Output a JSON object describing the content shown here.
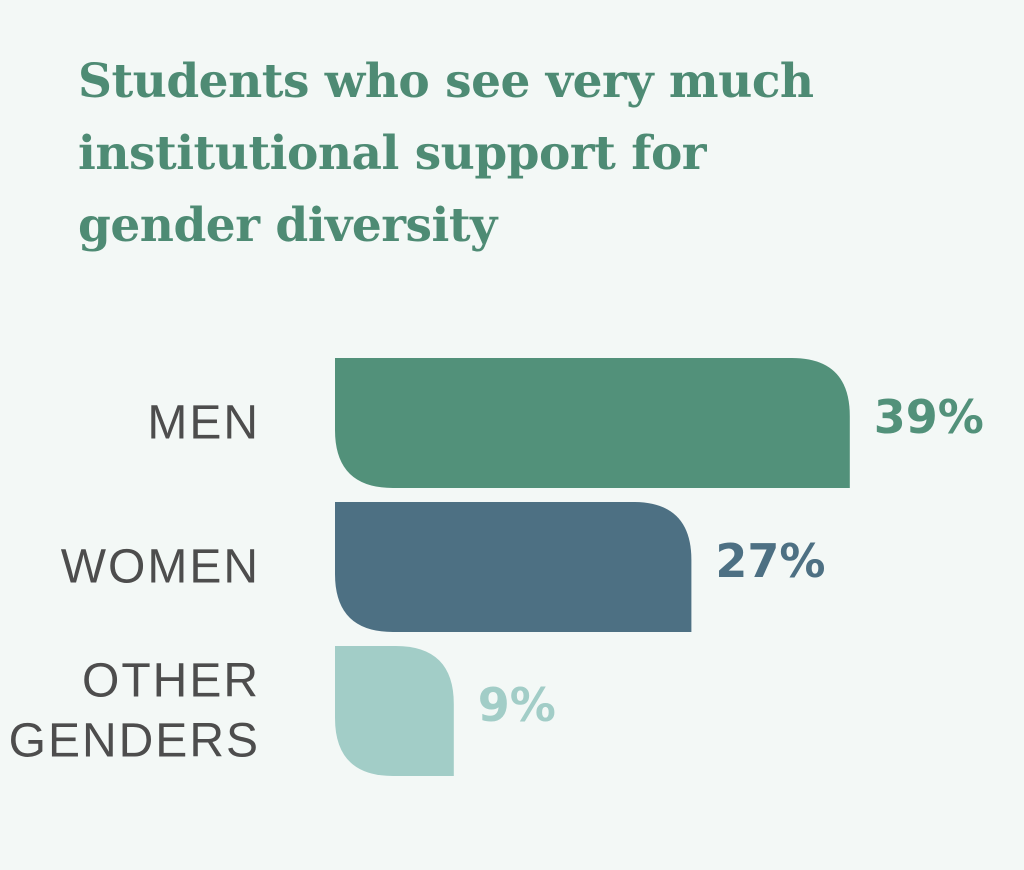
{
  "chart_data": {
    "type": "bar",
    "orientation": "horizontal",
    "title": "Students who see very much institutional support for gender diversity",
    "categories": [
      {
        "lines": [
          "MEN"
        ],
        "key": "men"
      },
      {
        "lines": [
          "WOMEN"
        ],
        "key": "women"
      },
      {
        "lines": [
          "OTHER",
          "GENDERS"
        ],
        "key": "other-genders"
      }
    ],
    "values": [
      39,
      27,
      9
    ],
    "value_labels": [
      "39%",
      "27%",
      "9%"
    ],
    "unit": "%",
    "colors": [
      "#52917a",
      "#4d7083",
      "#a2cdc7"
    ],
    "title_color": "#4e8b74",
    "grid": false,
    "legend": "none"
  }
}
